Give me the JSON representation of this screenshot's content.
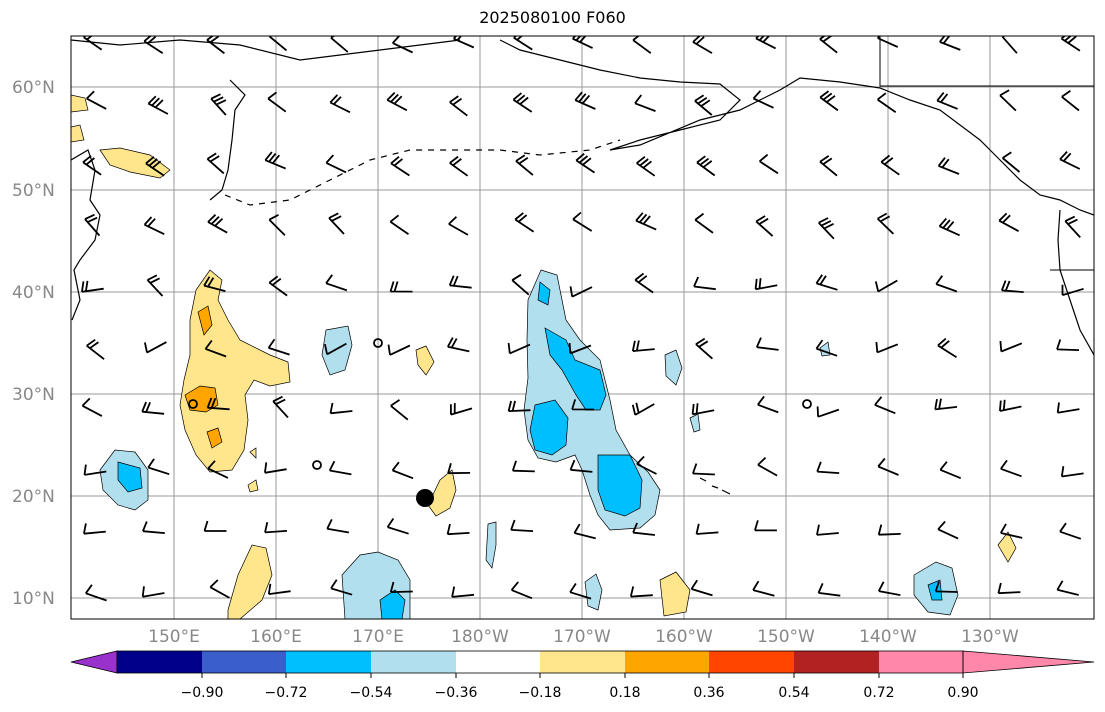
{
  "title": "2025080100 F060",
  "lat_labels": [
    "60°N",
    "50°N",
    "40°N",
    "30°N",
    "20°N",
    "10°N"
  ],
  "lon_labels": [
    "150°E",
    "160°E",
    "170°E",
    "180°W",
    "170°W",
    "160°W",
    "150°W",
    "140°W",
    "130°W"
  ],
  "colorbar": {
    "levels": [
      "−0.90",
      "−0.72",
      "−0.54",
      "−0.36",
      "−0.18",
      "0.18",
      "0.36",
      "0.54",
      "0.72",
      "0.90"
    ],
    "colors": [
      "#9932cc",
      "#00008b",
      "#3a5fcd",
      "#00bfff",
      "#b2dfee",
      "#ffffff",
      "#ffe68c",
      "#ffa500",
      "#ff4500",
      "#b22222",
      "#ff88aa"
    ]
  },
  "fill_colors": {
    "light_blue": "#b2dfee",
    "blue": "#00bfff",
    "light_yellow": "#ffe68c",
    "orange": "#ffa500"
  },
  "storm_marker": "tropical-cyclone-center-dot"
}
